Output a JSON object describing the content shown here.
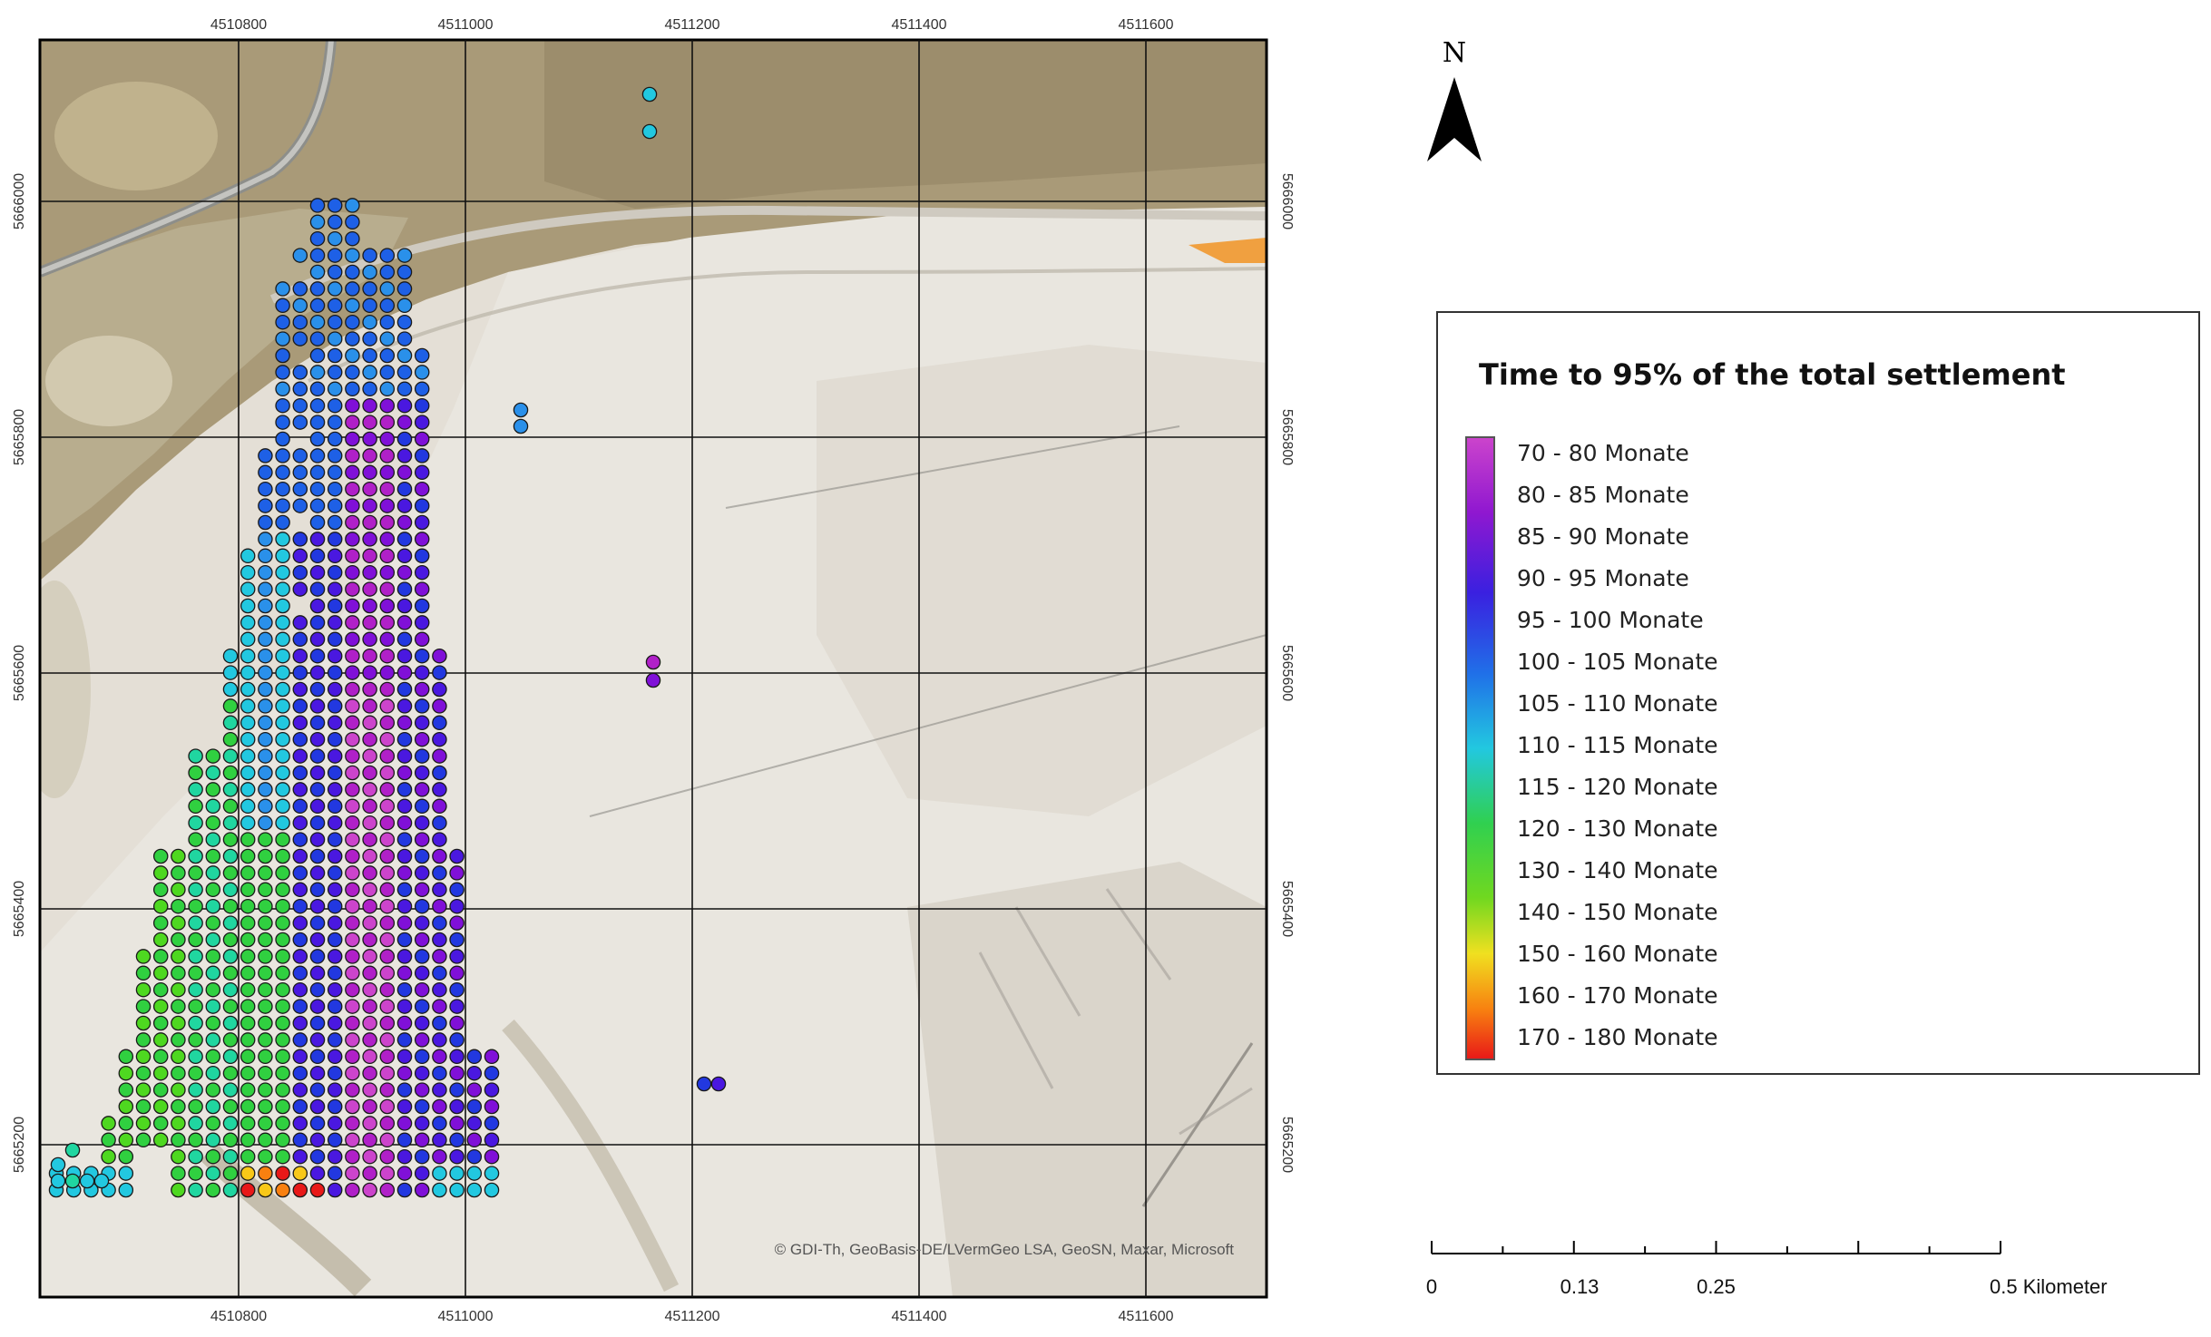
{
  "map": {
    "x_ticks": [
      "4510800",
      "4511000",
      "4511200",
      "4511400",
      "4511600"
    ],
    "y_ticks": [
      "5665200",
      "5665400",
      "5665600",
      "5665800",
      "5666000"
    ],
    "copyright": "© GDI-Th, GeoBasis-DE/LVermGeo LSA, GeoSN, Maxar, Microsoft"
  },
  "north_arrow": {
    "label": "N"
  },
  "legend": {
    "title": "Time to 95% of the total settlement",
    "classes": [
      {
        "label": "70 - 80 Monate",
        "color": "#cc44cc"
      },
      {
        "label": "80 - 85 Monate",
        "color": "#b020c8"
      },
      {
        "label": "85 - 90 Monate",
        "color": "#8010d8"
      },
      {
        "label": "90 - 95 Monate",
        "color": "#4a18e0"
      },
      {
        "label": "95 - 100 Monate",
        "color": "#2238e0"
      },
      {
        "label": "100 - 105 Monate",
        "color": "#1e60e6"
      },
      {
        "label": "105 - 110 Monate",
        "color": "#2a90ea"
      },
      {
        "label": "110 - 115 Monate",
        "color": "#22c8e0"
      },
      {
        "label": "115 - 120 Monate",
        "color": "#20d6a0"
      },
      {
        "label": "120 - 130 Monate",
        "color": "#30d040"
      },
      {
        "label": "130 - 140 Monate",
        "color": "#4ed820"
      },
      {
        "label": "140 - 150 Monate",
        "color": "#c8e020"
      },
      {
        "label": "150 - 160 Monate",
        "color": "#f8c818"
      },
      {
        "label": "160 - 170 Monate",
        "color": "#f88010"
      },
      {
        "label": "170 - 180 Monate",
        "color": "#e81818"
      }
    ]
  },
  "scale_bar": {
    "labels": [
      "0",
      "0.13",
      "0.25",
      "0.5 Kilometer"
    ],
    "values_km": [
      0,
      0.13,
      0.25,
      0.5
    ]
  }
}
